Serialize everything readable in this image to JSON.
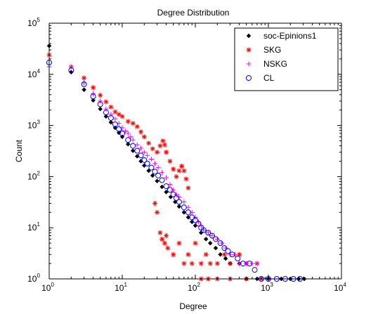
{
  "chart_data": {
    "type": "scatter",
    "title": "Degree Distribution",
    "xlabel": "Degree",
    "ylabel": "Count",
    "xscale": "log",
    "yscale": "log",
    "xlim": [
      1,
      10000
    ],
    "ylim": [
      1,
      100000
    ],
    "x_ticks": [
      {
        "base": "10",
        "exp": "0",
        "value": 1
      },
      {
        "base": "10",
        "exp": "1",
        "value": 10
      },
      {
        "base": "10",
        "exp": "2",
        "value": 100
      },
      {
        "base": "10",
        "exp": "3",
        "value": 1000
      },
      {
        "base": "10",
        "exp": "4",
        "value": 10000
      }
    ],
    "y_ticks": [
      {
        "base": "10",
        "exp": "0",
        "value": 1
      },
      {
        "base": "10",
        "exp": "1",
        "value": 10
      },
      {
        "base": "10",
        "exp": "2",
        "value": 100
      },
      {
        "base": "10",
        "exp": "3",
        "value": 1000
      },
      {
        "base": "10",
        "exp": "4",
        "value": 10000
      },
      {
        "base": "10",
        "exp": "5",
        "value": 100000
      }
    ],
    "grid": false,
    "legend_position": "top-right",
    "series": [
      {
        "name": "soc-Epinions1",
        "marker": "diamond",
        "color": "#000000",
        "points": [
          [
            1,
            36000
          ],
          [
            2,
            11000
          ],
          [
            3,
            5000
          ],
          [
            4,
            3100
          ],
          [
            5,
            2100
          ],
          [
            6,
            1500
          ],
          [
            7,
            1150
          ],
          [
            8,
            900
          ],
          [
            9,
            720
          ],
          [
            10,
            600
          ],
          [
            12,
            430
          ],
          [
            14,
            320
          ],
          [
            16,
            250
          ],
          [
            18,
            200
          ],
          [
            20,
            165
          ],
          [
            23,
            130
          ],
          [
            26,
            105
          ],
          [
            30,
            82
          ],
          [
            35,
            63
          ],
          [
            40,
            50
          ],
          [
            46,
            40
          ],
          [
            53,
            32
          ],
          [
            60,
            26
          ],
          [
            70,
            20
          ],
          [
            80,
            16
          ],
          [
            90,
            13
          ],
          [
            100,
            11
          ],
          [
            120,
            8
          ],
          [
            140,
            6
          ],
          [
            160,
            5
          ],
          [
            190,
            4
          ],
          [
            220,
            3
          ],
          [
            260,
            2.5
          ],
          [
            300,
            2
          ],
          [
            400,
            2
          ],
          [
            500,
            1
          ],
          [
            700,
            1
          ],
          [
            1000,
            1
          ],
          [
            1500,
            1
          ],
          [
            2000,
            1
          ],
          [
            2600,
            1
          ],
          [
            3100,
            1
          ]
        ]
      },
      {
        "name": "SKG",
        "marker": "asterisk",
        "color": "#ff0000",
        "points": [
          [
            1,
            24000
          ],
          [
            2,
            14000
          ],
          [
            3,
            8500
          ],
          [
            4,
            5500
          ],
          [
            5,
            3900
          ],
          [
            6,
            2900
          ],
          [
            7,
            2300
          ],
          [
            8,
            1850
          ],
          [
            9,
            1650
          ],
          [
            10,
            1500
          ],
          [
            12,
            1200
          ],
          [
            14,
            1100
          ],
          [
            16,
            950
          ],
          [
            18,
            750
          ],
          [
            20,
            600
          ],
          [
            23,
            450
          ],
          [
            26,
            350
          ],
          [
            30,
            300
          ],
          [
            33,
            400
          ],
          [
            36,
            500
          ],
          [
            38,
            420
          ],
          [
            40,
            300
          ],
          [
            45,
            200
          ],
          [
            50,
            140
          ],
          [
            55,
            100
          ],
          [
            60,
            130
          ],
          [
            65,
            160
          ],
          [
            70,
            130
          ],
          [
            75,
            90
          ],
          [
            80,
            60
          ],
          [
            28,
            30
          ],
          [
            30,
            20
          ],
          [
            33,
            8
          ],
          [
            35,
            6
          ],
          [
            38,
            5
          ],
          [
            40,
            7
          ],
          [
            42,
            4
          ],
          [
            50,
            3
          ],
          [
            60,
            5
          ],
          [
            70,
            2
          ],
          [
            80,
            3
          ],
          [
            90,
            2
          ],
          [
            100,
            5
          ],
          [
            120,
            2
          ],
          [
            140,
            3
          ],
          [
            160,
            2
          ],
          [
            200,
            2
          ],
          [
            250,
            3
          ],
          [
            300,
            2
          ],
          [
            400,
            3
          ],
          [
            500,
            2
          ],
          [
            700,
            2
          ],
          [
            120,
            1
          ],
          [
            150,
            1
          ],
          [
            200,
            1
          ],
          [
            300,
            1
          ],
          [
            500,
            1
          ],
          [
            800,
            1
          ]
        ]
      },
      {
        "name": "NSKG",
        "marker": "plus",
        "color": "#ff00ff",
        "points": [
          [
            1,
            14000
          ],
          [
            2,
            14000
          ],
          [
            3,
            6800
          ],
          [
            4,
            4200
          ],
          [
            5,
            3000
          ],
          [
            6,
            2100
          ],
          [
            7,
            1650
          ],
          [
            8,
            1350
          ],
          [
            9,
            1100
          ],
          [
            10,
            900
          ],
          [
            11,
            780
          ],
          [
            12,
            700
          ],
          [
            13,
            600
          ],
          [
            14,
            520
          ],
          [
            16,
            420
          ],
          [
            18,
            360
          ],
          [
            20,
            300
          ],
          [
            22,
            260
          ],
          [
            25,
            220
          ],
          [
            28,
            180
          ],
          [
            31,
            150
          ],
          [
            35,
            120
          ],
          [
            40,
            95
          ],
          [
            45,
            70
          ],
          [
            50,
            55
          ],
          [
            55,
            45
          ],
          [
            60,
            40
          ],
          [
            70,
            32
          ],
          [
            80,
            25
          ],
          [
            90,
            20
          ],
          [
            100,
            16
          ],
          [
            110,
            13
          ],
          [
            120,
            11
          ],
          [
            130,
            9
          ],
          [
            150,
            8
          ],
          [
            170,
            7
          ],
          [
            200,
            6
          ],
          [
            230,
            5
          ],
          [
            260,
            4
          ],
          [
            300,
            3
          ],
          [
            350,
            3
          ],
          [
            400,
            2
          ],
          [
            500,
            2
          ],
          [
            600,
            2
          ],
          [
            700,
            2
          ],
          [
            800,
            1
          ],
          [
            1000,
            1
          ]
        ]
      },
      {
        "name": "CL",
        "marker": "circle",
        "color": "#0000ff",
        "points": [
          [
            1,
            17000
          ],
          [
            2,
            12000
          ],
          [
            3,
            6400
          ],
          [
            4,
            3700
          ],
          [
            5,
            2600
          ],
          [
            6,
            1800
          ],
          [
            7,
            1400
          ],
          [
            8,
            1050
          ],
          [
            9,
            850
          ],
          [
            10,
            700
          ],
          [
            12,
            520
          ],
          [
            14,
            400
          ],
          [
            16,
            320
          ],
          [
            18,
            260
          ],
          [
            20,
            210
          ],
          [
            22,
            180
          ],
          [
            25,
            150
          ],
          [
            28,
            125
          ],
          [
            31,
            105
          ],
          [
            35,
            85
          ],
          [
            40,
            65
          ],
          [
            45,
            55
          ],
          [
            50,
            45
          ],
          [
            55,
            38
          ],
          [
            60,
            32
          ],
          [
            70,
            25
          ],
          [
            80,
            20
          ],
          [
            90,
            16
          ],
          [
            100,
            14
          ],
          [
            110,
            12
          ],
          [
            120,
            10
          ],
          [
            130,
            9
          ],
          [
            150,
            8
          ],
          [
            170,
            7
          ],
          [
            190,
            6
          ],
          [
            220,
            5
          ],
          [
            250,
            4
          ],
          [
            280,
            3.5
          ],
          [
            320,
            3
          ],
          [
            380,
            2.5
          ],
          [
            450,
            2
          ],
          [
            550,
            2
          ],
          [
            650,
            1.5
          ],
          [
            800,
            1
          ],
          [
            1000,
            1
          ],
          [
            1300,
            1
          ],
          [
            1700,
            1
          ],
          [
            2200,
            1
          ],
          [
            2700,
            1
          ]
        ]
      }
    ]
  }
}
